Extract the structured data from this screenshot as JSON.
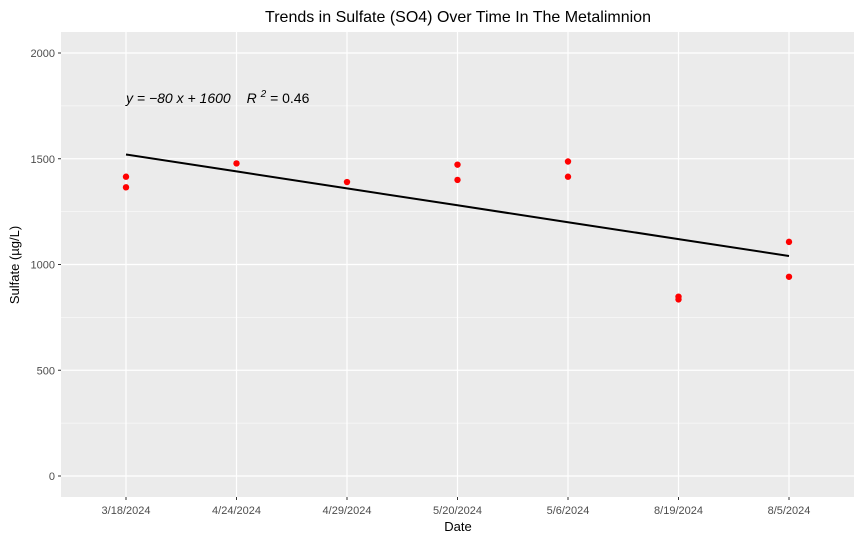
{
  "chart_data": {
    "type": "scatter",
    "title": "Trends in Sulfate (SO4) Over Time In The Metalimnion",
    "xlabel": "Date",
    "ylabel": "Sulfate (µg/L)",
    "categories": [
      "3/18/2024",
      "4/24/2024",
      "4/29/2024",
      "5/20/2024",
      "5/6/2024",
      "8/19/2024",
      "8/5/2024"
    ],
    "ylim": [
      0,
      2100
    ],
    "y_ticks": [
      0,
      500,
      1000,
      1500,
      2000
    ],
    "grid": true,
    "series": [
      {
        "type": "scatter",
        "color": "#ff0000",
        "points": [
          {
            "x": "3/18/2024",
            "y": 1415
          },
          {
            "x": "3/18/2024",
            "y": 1365
          },
          {
            "x": "4/24/2024",
            "y": 1478
          },
          {
            "x": "4/29/2024",
            "y": 1390
          },
          {
            "x": "5/20/2024",
            "y": 1472
          },
          {
            "x": "5/20/2024",
            "y": 1400
          },
          {
            "x": "5/6/2024",
            "y": 1487
          },
          {
            "x": "5/6/2024",
            "y": 1415
          },
          {
            "x": "8/19/2024",
            "y": 848
          },
          {
            "x": "8/19/2024",
            "y": 835
          },
          {
            "x": "8/5/2024",
            "y": 1107
          },
          {
            "x": "8/5/2024",
            "y": 942
          }
        ]
      },
      {
        "type": "line",
        "color": "#000000",
        "values": [
          1520,
          1440,
          1360,
          1280,
          1200,
          1120,
          1040
        ]
      }
    ],
    "annotation": {
      "equation": "y = −80 x + 1600",
      "r2_prefix": "R",
      "r2_exponent": "2",
      "r2_value": " = 0.46"
    }
  }
}
